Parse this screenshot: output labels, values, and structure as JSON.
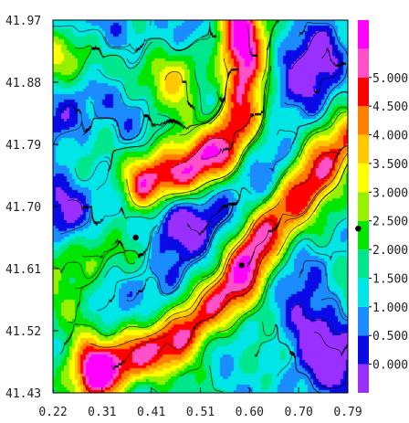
{
  "chart_data": {
    "type": "heatmap",
    "title": "",
    "xlabel": "",
    "ylabel": "",
    "xlim": [
      0.22,
      0.79
    ],
    "ylim": [
      41.43,
      41.97
    ],
    "x_ticks": [
      "0.22",
      "0.31",
      "0.41",
      "0.51",
      "0.60",
      "0.70",
      "0.79"
    ],
    "y_ticks": [
      "41.97",
      "41.88",
      "41.79",
      "41.70",
      "41.61",
      "41.52",
      "41.43"
    ],
    "colorbar": {
      "ticks": [
        "0.000",
        "0.500",
        "1.000",
        "1.500",
        "2.000",
        "2.500",
        "3.000",
        "3.500",
        "4.000",
        "4.500",
        "5.000"
      ],
      "bins": [
        {
          "lo": -0.5,
          "hi": 0.0,
          "color": "#9a30ff"
        },
        {
          "lo": 0.0,
          "hi": 0.5,
          "color": "#0a0ae6"
        },
        {
          "lo": 0.5,
          "hi": 1.0,
          "color": "#1a8cff"
        },
        {
          "lo": 1.0,
          "hi": 1.5,
          "color": "#00e6e6"
        },
        {
          "lo": 1.5,
          "hi": 2.0,
          "color": "#00e68c"
        },
        {
          "lo": 2.0,
          "hi": 2.5,
          "color": "#00e600"
        },
        {
          "lo": 2.5,
          "hi": 3.0,
          "color": "#96f000"
        },
        {
          "lo": 3.0,
          "hi": 3.5,
          "color": "#ffff00"
        },
        {
          "lo": 3.5,
          "hi": 4.0,
          "color": "#ffc800"
        },
        {
          "lo": 4.0,
          "hi": 4.5,
          "color": "#ff8000"
        },
        {
          "lo": 4.5,
          "hi": 5.0,
          "color": "#ff0000"
        },
        {
          "lo": 5.0,
          "hi": 5.5,
          "color": "#ff50c8"
        },
        {
          "lo": 5.5,
          "hi": 6.0,
          "color": "#ff00ff"
        }
      ]
    },
    "ridges": [
      {
        "points": [
          [
            0.58,
            41.97
          ],
          [
            0.59,
            41.9
          ],
          [
            0.585,
            41.84
          ],
          [
            0.55,
            41.79
          ],
          [
            0.48,
            41.75
          ],
          [
            0.4,
            41.73
          ]
        ],
        "peak": 5.5
      },
      {
        "points": [
          [
            0.31,
            41.46
          ],
          [
            0.45,
            41.5
          ],
          [
            0.57,
            41.58
          ],
          [
            0.63,
            41.66
          ],
          [
            0.69,
            41.72
          ],
          [
            0.75,
            41.77
          ],
          [
            0.79,
            41.8
          ]
        ],
        "peak": 5.2
      },
      {
        "points": [
          [
            0.22,
            41.92
          ],
          [
            0.33,
            41.91
          ],
          [
            0.42,
            41.88
          ]
        ],
        "peak": 2.6
      },
      {
        "points": [
          [
            0.22,
            41.62
          ],
          [
            0.3,
            41.63
          ],
          [
            0.4,
            41.64
          ]
        ],
        "peak": 2.5
      },
      {
        "points": [
          [
            0.27,
            41.55
          ],
          [
            0.29,
            41.49
          ],
          [
            0.31,
            41.45
          ]
        ],
        "peak": 2.7
      },
      {
        "points": [
          [
            0.47,
            41.89
          ],
          [
            0.44,
            41.81
          ],
          [
            0.4,
            41.76
          ]
        ],
        "peak": 2.6
      }
    ],
    "lows": [
      {
        "x": 0.25,
        "y": 41.83,
        "depth": 1.0
      },
      {
        "x": 0.34,
        "y": 41.95,
        "depth": 1.1
      },
      {
        "x": 0.41,
        "y": 41.83,
        "depth": 1.2
      },
      {
        "x": 0.45,
        "y": 41.69,
        "depth": 1.5
      },
      {
        "x": 0.37,
        "y": 41.66,
        "depth": 1.2
      },
      {
        "x": 0.52,
        "y": 41.7,
        "depth": 1.3
      },
      {
        "x": 0.71,
        "y": 41.52,
        "depth": 1.3
      },
      {
        "x": 0.76,
        "y": 41.48,
        "depth": 1.3
      },
      {
        "x": 0.69,
        "y": 41.86,
        "depth": 1.2
      },
      {
        "x": 0.74,
        "y": 41.91,
        "depth": 1.0
      },
      {
        "x": 0.66,
        "y": 41.76,
        "depth": 0.9
      },
      {
        "x": 0.42,
        "y": 41.56,
        "depth": 0.9
      },
      {
        "x": 0.24,
        "y": 41.7,
        "depth": 1.0
      }
    ],
    "markers": [
      {
        "x": 0.38,
        "y": 41.655
      },
      {
        "x": 0.585,
        "y": 41.615
      },
      {
        "x": 0.81,
        "y": 41.668
      }
    ]
  }
}
